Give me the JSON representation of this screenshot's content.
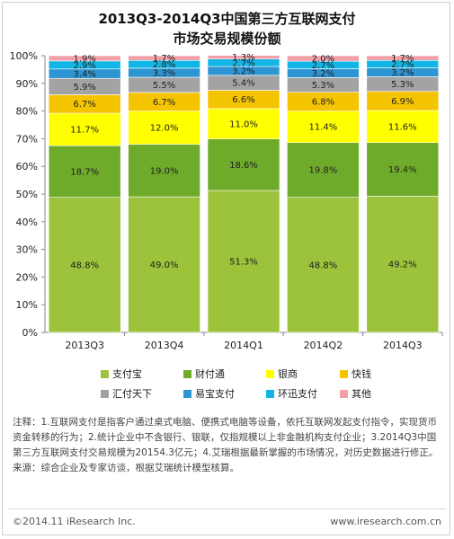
{
  "title_line1": "2013Q3-2014Q3中国第三方互联网支付",
  "title_line2": "市场交易规模份额",
  "chart_data": {
    "type": "bar",
    "stacked": true,
    "title": "2013Q3-2014Q3中国第三方互联网支付 市场交易规模份额",
    "categories": [
      "2013Q3",
      "2013Q4",
      "2014Q1",
      "2014Q2",
      "2014Q3"
    ],
    "yticks": [
      "0%",
      "10%",
      "20%",
      "30%",
      "40%",
      "50%",
      "60%",
      "70%",
      "80%",
      "90%",
      "100%"
    ],
    "ylim": [
      0,
      100
    ],
    "series": [
      {
        "name": "支付宝",
        "color": "#9dc23b",
        "values": [
          48.8,
          49.0,
          51.3,
          48.8,
          49.2
        ]
      },
      {
        "name": "财付通",
        "color": "#6fab2b",
        "values": [
          18.7,
          19.0,
          18.6,
          19.8,
          19.4
        ]
      },
      {
        "name": "银商",
        "color": "#ffff00",
        "values": [
          11.7,
          12.0,
          11.0,
          11.4,
          11.6
        ]
      },
      {
        "name": "快钱",
        "color": "#f5c400",
        "values": [
          6.7,
          6.7,
          6.6,
          6.8,
          6.9
        ]
      },
      {
        "name": "汇付天下",
        "color": "#a3a3a3",
        "values": [
          5.9,
          5.5,
          5.4,
          5.3,
          5.3
        ]
      },
      {
        "name": "易宝支付",
        "color": "#2e95d3",
        "values": [
          3.4,
          3.3,
          3.2,
          3.2,
          3.2
        ]
      },
      {
        "name": "环迅支付",
        "color": "#12b6e6",
        "values": [
          2.9,
          2.8,
          2.7,
          2.7,
          2.7
        ]
      },
      {
        "name": "其他",
        "color": "#f2a0a8",
        "values": [
          1.9,
          1.7,
          1.3,
          2.0,
          1.7
        ]
      }
    ]
  },
  "notes": {
    "line": "注释：1.互联网支付是指客户通过桌式电脑、便携式电脑等设备，依托互联网发起支付指令，实现货币资金转移的行为；2.统计企业中不含银行、银联，仅指规模以上非金融机构支付企业；3.2014Q3中国第三方互联网支付交易规模为20154.3亿元；4.艾瑞根据最新掌握的市场情况，对历史数据进行修正。",
    "source": "来源：综合企业及专家访谈，根据艾瑞统计模型核算。"
  },
  "footer": {
    "copyright": "©2014.11 iResearch Inc.",
    "site": "www.iresearch.com.cn"
  }
}
